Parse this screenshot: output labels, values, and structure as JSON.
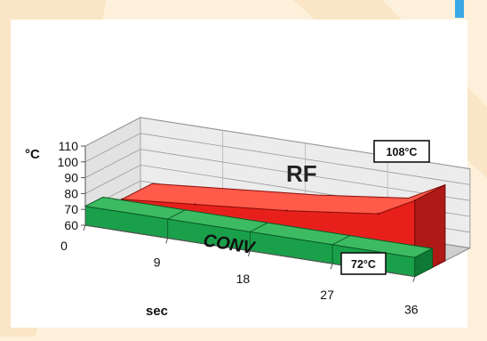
{
  "chart_data": {
    "type": "area",
    "y_unit": "°C",
    "x_unit": "sec",
    "x_ticks": [
      "0",
      "9",
      "18",
      "27",
      "36"
    ],
    "y_ticks": [
      "60",
      "70",
      "80",
      "90",
      "100",
      "110"
    ],
    "ylim": [
      60,
      110
    ],
    "xlim": [
      0,
      36
    ],
    "grid": true,
    "series": [
      {
        "name": "RF",
        "x": [
          4,
          12,
          22,
          32,
          36
        ],
        "values": [
          80,
          84,
          89,
          96,
          108
        ],
        "end_label": "108°C",
        "color": "#e8201c"
      },
      {
        "name": "CONV",
        "x": [
          0,
          9,
          18,
          27,
          36
        ],
        "values": [
          72,
          72,
          72,
          72,
          72
        ],
        "end_label": "72°C",
        "color": "#1aa04a"
      }
    ]
  },
  "colors": {
    "background": "#fdf1dc",
    "accent_stripe": "#38a8e6",
    "rf_top": "#ff5a4a",
    "rf_side": "#b01a16",
    "conv_top": "#3dbb62",
    "conv_side": "#0e7a35"
  }
}
